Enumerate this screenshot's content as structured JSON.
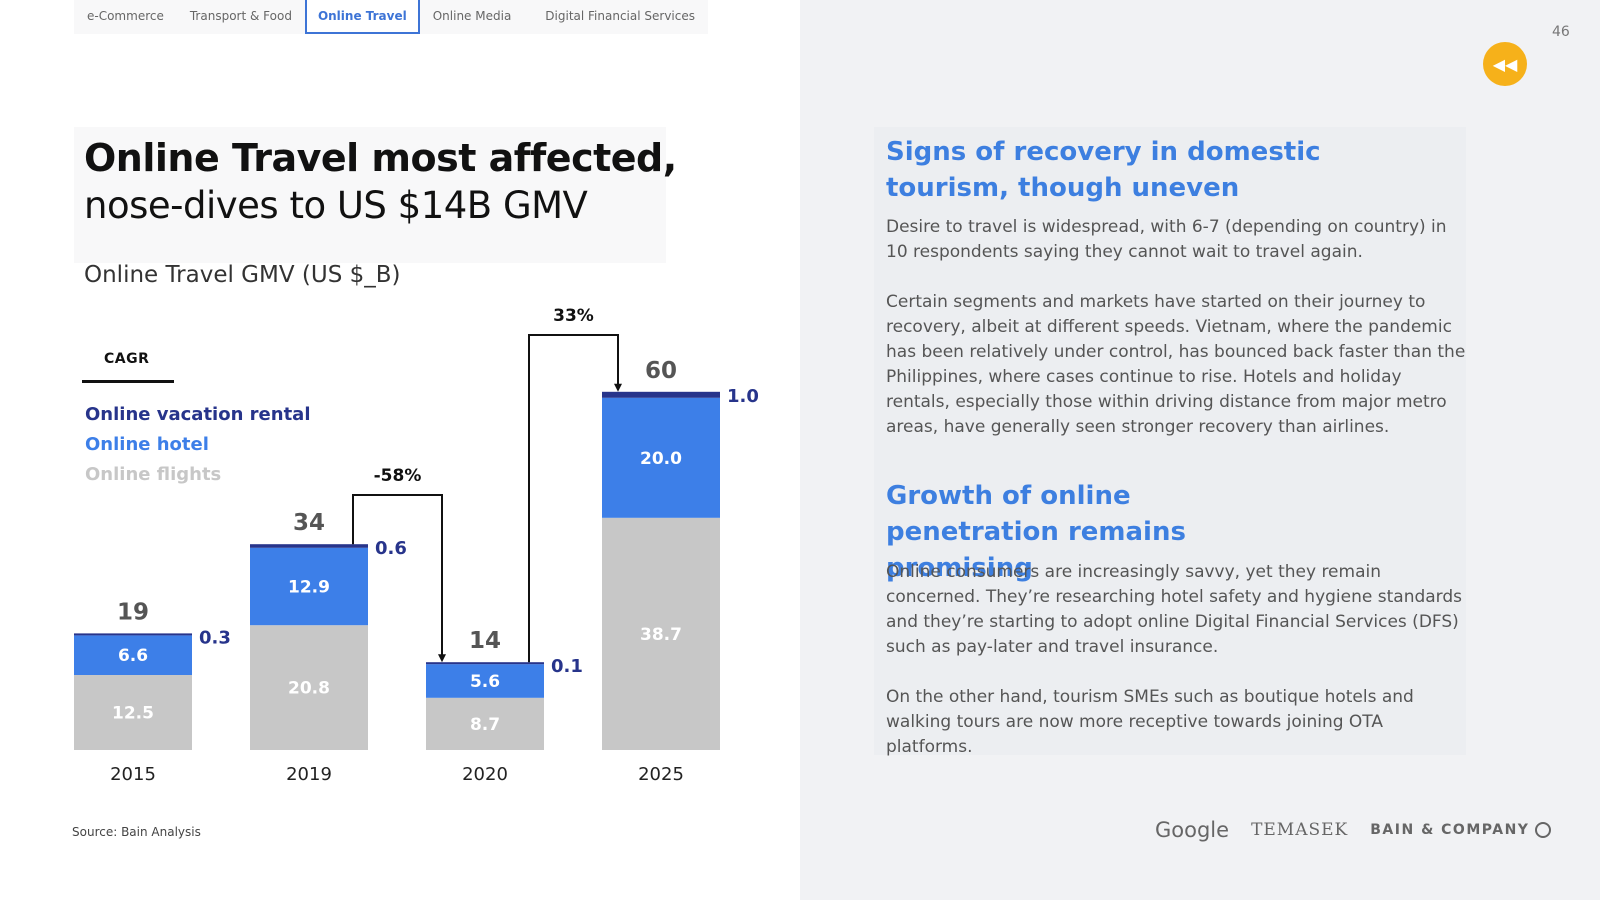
{
  "tabs": [
    {
      "label": "e-Commerce",
      "active": false
    },
    {
      "label": "Transport & Food",
      "active": false
    },
    {
      "label": "Online Travel",
      "active": true
    },
    {
      "label": "Online Media",
      "active": false
    },
    {
      "label": "Digital Financial Services",
      "active": false
    }
  ],
  "page_number": "46",
  "back_icon": "rewind-icon",
  "title": {
    "line1": "Online Travel most affected,",
    "line2": "nose-dives to US $14B GMV"
  },
  "cagr_label": "CAGR",
  "source": "Source: Bain Analysis",
  "colors": {
    "vacation_rental": "#27348b",
    "hotel": "#3d7fe8",
    "flights": "#c7c7c7",
    "accent": "#3d7fe0",
    "back_button": "#f6b11a"
  },
  "chart_data": {
    "type": "bar",
    "stacked": true,
    "title": "Online Travel GMV (US $_B)",
    "categories": [
      "2015",
      "2019",
      "2020",
      "2025"
    ],
    "series": [
      {
        "name": "Online flights",
        "values": [
          12.5,
          20.8,
          8.7,
          38.7
        ]
      },
      {
        "name": "Online hotel",
        "values": [
          6.6,
          12.9,
          5.6,
          20.0
        ]
      },
      {
        "name": "Online vacation rental",
        "values": [
          0.3,
          0.6,
          0.1,
          1.0
        ]
      }
    ],
    "totals": [
      "19",
      "34",
      "14",
      "60"
    ],
    "value_labels": {
      "flights": [
        "12.5",
        "20.8",
        "8.7",
        "38.7"
      ],
      "hotel": [
        "6.6",
        "12.9",
        "5.6",
        "20.0"
      ],
      "rental": [
        "0.3",
        "0.6",
        "0.1",
        "1.0"
      ]
    },
    "legend": [
      "Online vacation rental",
      "Online hotel",
      "Online flights"
    ],
    "legend_position": "top-left",
    "cagr_annotations": [
      {
        "from": "2019",
        "to": "2020",
        "label": "-58%"
      },
      {
        "from": "2020",
        "to": "2025",
        "label": "33%"
      }
    ],
    "grid": false
  },
  "right": {
    "heading1": "Signs of recovery in domestic tourism, though uneven",
    "para1": "Desire to travel is widespread, with 6-7 (depending on country) in 10 respondents saying they cannot wait to travel again.",
    "para2": "Certain segments and markets have started on their journey to recovery, albeit at different speeds. Vietnam, where the pandemic has been relatively under control, has bounced back faster than the Philippines, where cases continue to rise. Hotels and holiday rentals, especially those within driving distance from major metro areas, have generally seen stronger recovery than airlines.",
    "heading2": "Growth of online penetration remains promising",
    "para3": "Online consumers are increasingly savvy, yet they remain concerned. They’re researching hotel safety and hygiene standards and they’re starting to adopt online Digital Financial Services (DFS) such as pay-later and travel insurance.",
    "para4": "On the other hand, tourism SMEs such as boutique hotels and walking tours are now more receptive towards joining OTA platforms."
  },
  "logos": {
    "google": "Google",
    "temasek": "TEMASEK",
    "bain": "BAIN & COMPANY"
  }
}
